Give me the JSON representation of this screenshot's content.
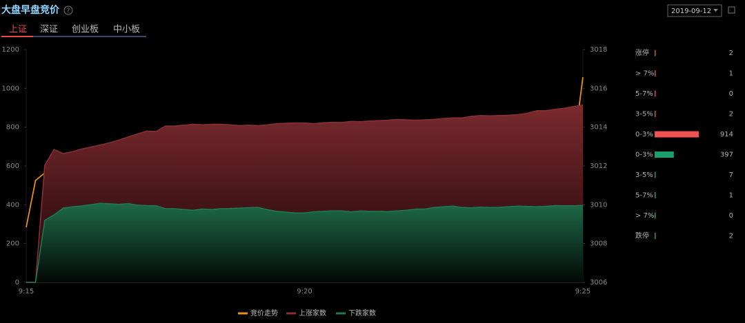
{
  "header": {
    "title": "大盘早盘竞价",
    "help": "?",
    "date": "2019-09-12"
  },
  "tabs": [
    "上证",
    "深证",
    "创业板",
    "中小板"
  ],
  "active_tab": 0,
  "chart_data": {
    "type": "line",
    "categories": [
      "9:15",
      null,
      null,
      null,
      null,
      null,
      null,
      null,
      null,
      null,
      null,
      null,
      null,
      null,
      null,
      null,
      null,
      null,
      null,
      null,
      null,
      null,
      null,
      null,
      null,
      null,
      null,
      null,
      null,
      null,
      "9:20",
      null,
      null,
      null,
      null,
      null,
      null,
      null,
      null,
      null,
      null,
      null,
      null,
      null,
      null,
      null,
      null,
      null,
      null,
      null,
      null,
      null,
      null,
      null,
      null,
      null,
      null,
      null,
      null,
      null,
      "9:25"
    ],
    "ylim": [
      0,
      1200
    ],
    "yticks": [
      0,
      200,
      400,
      600,
      800,
      1000,
      1200
    ],
    "y2lim": [
      3006,
      3018
    ],
    "y2ticks": [
      3006,
      3008,
      3010,
      3012,
      3014,
      3016,
      3018
    ],
    "grid": false,
    "legend": "bottom",
    "series": [
      {
        "name": "竞价走势",
        "color": "#e8901a",
        "axis": "y2",
        "area": false,
        "values": [
          3008.84,
          3011.25,
          3011.64,
          3009.48,
          3008.91,
          3008.84,
          3008.13,
          3008.56,
          3008.56,
          3008.48,
          3008.52,
          3008.8,
          3008.95,
          3009.02,
          3010.51,
          3010.51,
          3010.26,
          3010.61,
          3010.72,
          3011.01,
          3010.69,
          3010.44,
          3010.47,
          3010.4,
          3010.61,
          3011.32,
          3011.43,
          3011.29,
          3011.15,
          3010.9,
          3010.26,
          3010.4,
          3010.4,
          3010.33,
          3010.4,
          3010.44,
          3010.83,
          3010.79,
          3010.69,
          3010.83,
          3010.83,
          3010.69,
          3010.9,
          3011.15,
          3011.18,
          3011.29,
          3011.61,
          3011.86,
          3011.79,
          3011.82,
          3012.14,
          3012.0,
          3012.0,
          3011.89,
          3011.93,
          3012.32,
          3012.32,
          3012.46,
          3012.64,
          3012.85,
          3016.58
        ]
      },
      {
        "name": "上涨家数",
        "color": "#8b3035",
        "area": true,
        "values": [
          0,
          0,
          604,
          685,
          664,
          674,
          688,
          698,
          708,
          720,
          734,
          750,
          765,
          780,
          778,
          806,
          806,
          810,
          815,
          812,
          815,
          815,
          812,
          808,
          810,
          808,
          812,
          818,
          820,
          822,
          822,
          818,
          823,
          825,
          824,
          830,
          828,
          832,
          834,
          836,
          840,
          838,
          836,
          838,
          840,
          845,
          848,
          848,
          856,
          860,
          858,
          860,
          862,
          865,
          872,
          885,
          885,
          892,
          898,
          906,
          914
        ]
      },
      {
        "name": "下跌家数",
        "color": "#1e7a52",
        "area": true,
        "values": [
          0,
          0,
          320,
          348,
          383,
          390,
          394,
          401,
          408,
          405,
          402,
          406,
          398,
          396,
          395,
          380,
          380,
          376,
          372,
          378,
          376,
          380,
          381,
          383,
          385,
          386,
          375,
          366,
          362,
          358,
          358,
          364,
          366,
          368,
          369,
          363,
          368,
          366,
          366,
          365,
          368,
          372,
          378,
          378,
          386,
          390,
          393,
          386,
          384,
          388,
          386,
          387,
          390,
          393,
          392,
          390,
          392,
          396,
          395,
          395,
          397
        ]
      }
    ]
  },
  "panel": [
    {
      "label": "涨停",
      "value": 2,
      "color": "#e84a4a"
    },
    {
      "label": "> 7%",
      "value": 1,
      "color": "#e84a4a"
    },
    {
      "label": "5-7%",
      "value": 0,
      "color": "#e84a4a"
    },
    {
      "label": "3-5%",
      "value": 2,
      "color": "#e84a4a"
    },
    {
      "label": "0-3%",
      "value": 914,
      "color": "#f05252"
    },
    {
      "label": "0-3%",
      "value": 397,
      "color": "#1aa06a"
    },
    {
      "label": "3-5%",
      "value": 7,
      "color": "#1aa06a"
    },
    {
      "label": "5-7%",
      "value": 1,
      "color": "#1aa06a"
    },
    {
      "label": "> 7%",
      "value": 0,
      "color": "#1aa06a"
    },
    {
      "label": "跌停",
      "value": 2,
      "color": "#1aa06a"
    }
  ]
}
